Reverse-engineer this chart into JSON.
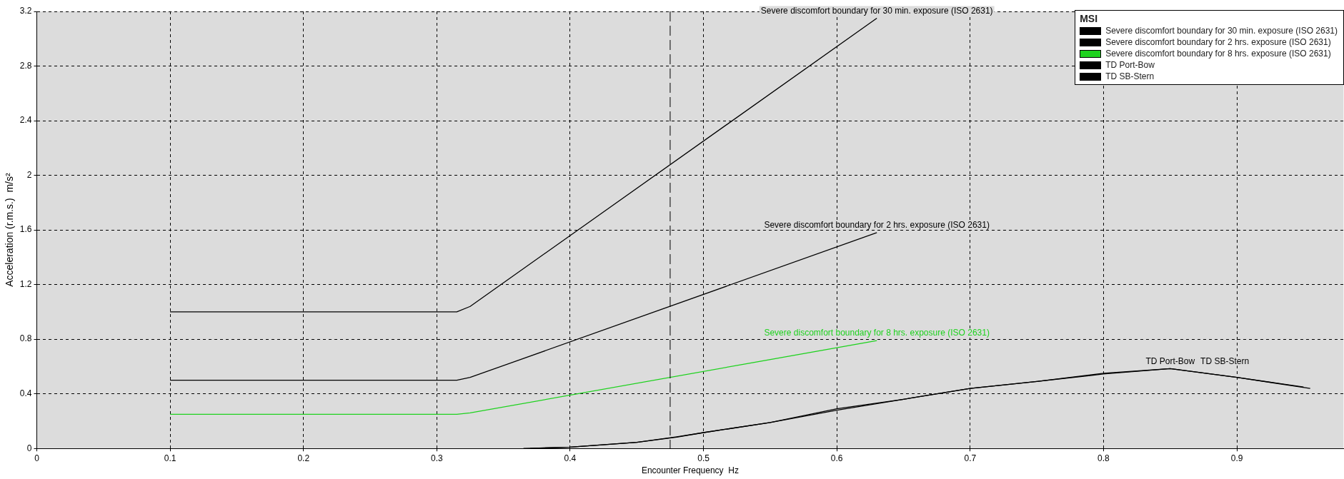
{
  "chart_data": {
    "type": "line",
    "xlabel": "Encounter Frequency  Hz",
    "ylabel": "Acceleration (r.m.s.)  m/s²",
    "legend_title": "MSI",
    "legend": "top right",
    "grid": true,
    "line_style": "solid",
    "marker": "none",
    "xlim": [
      0,
      0.98
    ],
    "xticks": [
      0,
      0.1,
      0.2,
      0.3,
      0.4,
      0.5,
      0.6,
      0.7,
      0.8,
      0.9
    ],
    "ylim": [
      0,
      3.2
    ],
    "yticks": [
      0,
      0.4,
      0.8,
      1.2,
      1.6,
      2,
      2.4,
      2.8,
      3.2
    ],
    "series": [
      {
        "name": "Severe discomfort boundary for 30 min. exposure (ISO 2631)",
        "color": "#000000",
        "x": [
          0.1,
          0.315,
          0.325,
          0.63
        ],
        "values": [
          1.0,
          1.0,
          1.04,
          3.15
        ]
      },
      {
        "name": "Severe discomfort boundary for 2 hrs. exposure (ISO 2631)",
        "color": "#000000",
        "x": [
          0.1,
          0.315,
          0.325,
          0.63
        ],
        "values": [
          0.5,
          0.5,
          0.52,
          1.58
        ]
      },
      {
        "name": "Severe discomfort boundary for 8 hrs. exposure (ISO 2631)",
        "color": "#1ed21e",
        "x": [
          0.1,
          0.315,
          0.325,
          0.63
        ],
        "values": [
          0.25,
          0.25,
          0.26,
          0.79
        ]
      },
      {
        "name": "TD Port-Bow",
        "color": "#000000",
        "x": [
          0.365,
          0.4,
          0.45,
          0.48,
          0.5,
          0.55,
          0.6,
          0.65,
          0.7,
          0.75,
          0.8,
          0.85,
          0.9,
          0.955
        ],
        "values": [
          0,
          0.01,
          0.045,
          0.083,
          0.116,
          0.19,
          0.28,
          0.36,
          0.44,
          0.49,
          0.545,
          0.585,
          0.52,
          0.44
        ]
      },
      {
        "name": "TD SB-Stern",
        "color": "#000000",
        "x": [
          0.37,
          0.4,
          0.45,
          0.48,
          0.5,
          0.55,
          0.6,
          0.65,
          0.7,
          0.75,
          0.8,
          0.85,
          0.9,
          0.95
        ],
        "values": [
          0,
          0.01,
          0.045,
          0.085,
          0.116,
          0.19,
          0.29,
          0.36,
          0.44,
          0.49,
          0.55,
          0.585,
          0.52,
          0.45
        ]
      }
    ],
    "ref_lines": [
      {
        "axis": "x",
        "value": 0.475,
        "color": "#000000",
        "line_style": "dashed"
      }
    ]
  }
}
